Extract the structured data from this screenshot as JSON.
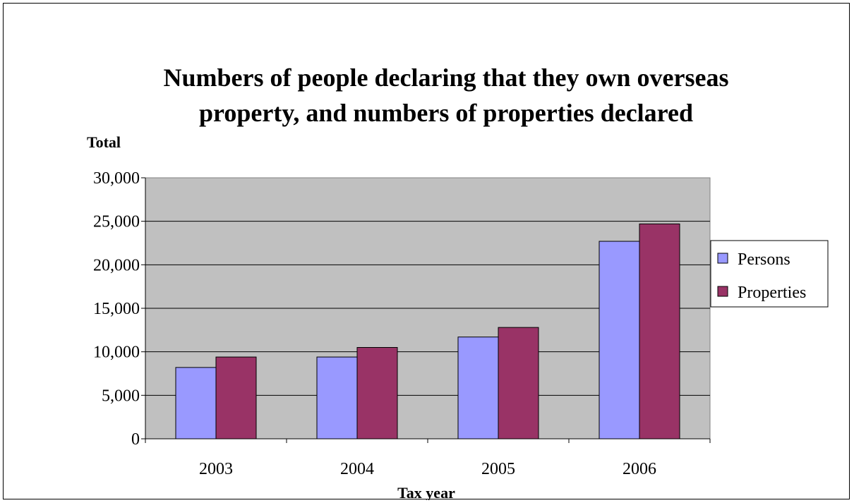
{
  "chart_data": {
    "type": "bar",
    "title_lines": [
      "Numbers of people declaring that they own overseas",
      "property, and numbers of properties declared"
    ],
    "xlabel": "Tax year",
    "ylabel": "Total",
    "categories": [
      "2003",
      "2004",
      "2005",
      "2006"
    ],
    "series": [
      {
        "name": "Persons",
        "color": "#9999ff",
        "values": [
          8200,
          9400,
          11700,
          22700
        ]
      },
      {
        "name": "Properties",
        "color": "#993366",
        "values": [
          9400,
          10500,
          12800,
          24700
        ]
      }
    ],
    "ylim": [
      0,
      30000
    ],
    "yticks": [
      "0",
      "5,000",
      "10,000",
      "15,000",
      "20,000",
      "25,000",
      "30,000"
    ],
    "plot_background": "#c0c0c0",
    "grid": true,
    "legend_position": "right"
  }
}
